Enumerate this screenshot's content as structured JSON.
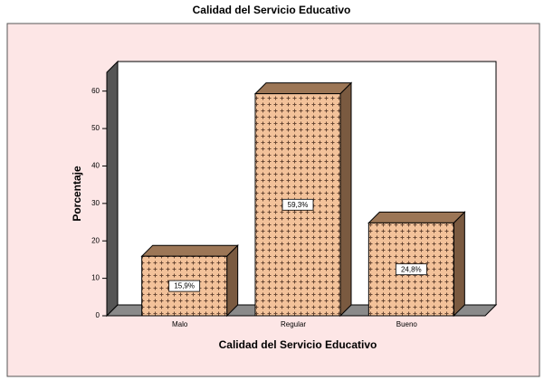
{
  "chart_data": {
    "type": "bar3d",
    "title": "Calidad del Servicio Educativo",
    "x_label": "Calidad del Servicio Educativo",
    "y_label": "Porcentaje",
    "categories": [
      "Malo",
      "Regular",
      "Bueno"
    ],
    "values": [
      15.9,
      59.3,
      24.8
    ],
    "value_labels": [
      "15,9%",
      "59,3%",
      "24,8%"
    ],
    "color": "#f3c29a",
    "ylim": [
      0,
      65
    ],
    "yticks": [
      0,
      10,
      20,
      30,
      40,
      50,
      60
    ]
  }
}
